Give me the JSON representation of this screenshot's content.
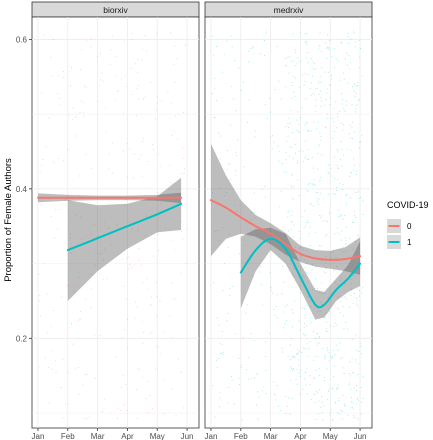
{
  "chart_data": {
    "type": "line",
    "ylabel": "Proportion of Female Authors",
    "xlabel": "",
    "ylim": [
      0.08,
      0.63
    ],
    "y_ticks": [
      0.2,
      0.4,
      0.6
    ],
    "x_ticks": [
      "Jan",
      "Feb",
      "Mar",
      "Apr",
      "May",
      "Jun"
    ],
    "x_range_months": [
      0.8,
      6.4
    ],
    "grid": true,
    "legend": {
      "title": "COVID-19",
      "position": "right",
      "entries": [
        {
          "label": "0",
          "color": "#F8766D"
        },
        {
          "label": "1",
          "color": "#00BFC4"
        }
      ]
    },
    "panels": [
      {
        "strip": "biorxiv",
        "series": [
          {
            "name": "0",
            "color": "#F8766D",
            "x": [
              1.0,
              2.0,
              3.0,
              4.0,
              5.0,
              5.8
            ],
            "y": [
              0.388,
              0.388,
              0.388,
              0.388,
              0.388,
              0.388
            ],
            "ci_low": [
              0.382,
              0.384,
              0.385,
              0.385,
              0.384,
              0.381
            ],
            "ci_high": [
              0.394,
              0.392,
              0.391,
              0.391,
              0.392,
              0.395
            ]
          },
          {
            "name": "1",
            "color": "#00BFC4",
            "x": [
              2.0,
              3.0,
              4.0,
              5.0,
              5.8
            ],
            "y": [
              0.318,
              0.334,
              0.35,
              0.366,
              0.38
            ],
            "ci_low": [
              0.25,
              0.29,
              0.32,
              0.342,
              0.345
            ],
            "ci_high": [
              0.385,
              0.378,
              0.38,
              0.39,
              0.415
            ]
          }
        ]
      },
      {
        "strip": "medrxiv",
        "series": [
          {
            "name": "0",
            "color": "#F8766D",
            "x": [
              1.0,
              1.5,
              2.0,
              2.5,
              3.0,
              3.5,
              4.0,
              4.5,
              5.0,
              5.5,
              6.0
            ],
            "y": [
              0.385,
              0.375,
              0.362,
              0.35,
              0.34,
              0.326,
              0.313,
              0.307,
              0.305,
              0.306,
              0.31
            ],
            "ci_low": [
              0.31,
              0.333,
              0.34,
              0.336,
              0.326,
              0.312,
              0.302,
              0.296,
              0.293,
              0.29,
              0.285
            ],
            "ci_high": [
              0.46,
              0.418,
              0.385,
              0.365,
              0.354,
              0.341,
              0.324,
              0.318,
              0.317,
              0.322,
              0.335
            ]
          },
          {
            "name": "1",
            "color": "#00BFC4",
            "x": [
              2.0,
              2.5,
              3.0,
              3.5,
              4.0,
              4.5,
              4.8,
              5.2,
              5.6,
              6.0
            ],
            "y": [
              0.288,
              0.318,
              0.333,
              0.32,
              0.282,
              0.245,
              0.245,
              0.265,
              0.28,
              0.3
            ],
            "ci_low": [
              0.24,
              0.29,
              0.318,
              0.3,
              0.265,
              0.225,
              0.228,
              0.25,
              0.262,
              0.27
            ],
            "ci_high": [
              0.336,
              0.346,
              0.348,
              0.34,
              0.3,
              0.265,
              0.262,
              0.28,
              0.298,
              0.33
            ]
          }
        ]
      }
    ]
  }
}
